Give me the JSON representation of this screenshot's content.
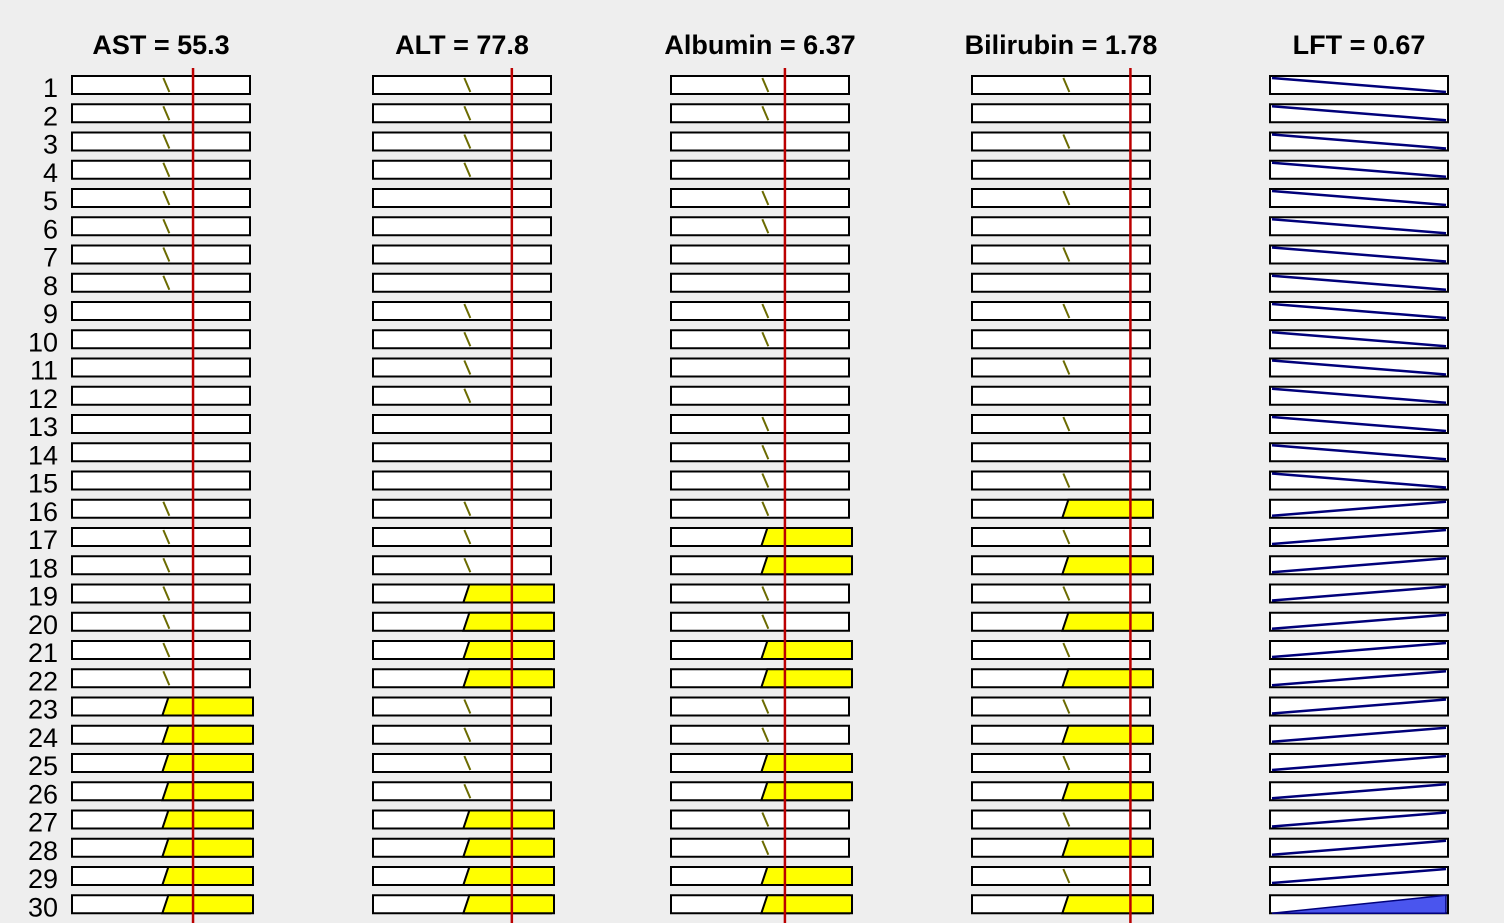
{
  "colors": {
    "background": "#eeeeee",
    "box_stroke": "#000000",
    "box_fill": "#ffffff",
    "fired_fill": "#ffff00",
    "threshold_line": "#bb0000",
    "membership_line": "#6b6b00",
    "output_line": "#00007a",
    "output_fill": "#4a55ee"
  },
  "rule_count": 30,
  "rule_numbers": [
    "1",
    "2",
    "3",
    "4",
    "5",
    "6",
    "7",
    "8",
    "9",
    "10",
    "11",
    "12",
    "13",
    "14",
    "15",
    "16",
    "17",
    "18",
    "19",
    "20",
    "21",
    "22",
    "23",
    "24",
    "25",
    "26",
    "27",
    "28",
    "29",
    "30"
  ],
  "columns": [
    {
      "title": "AST = 55.3",
      "threshold": 0.68,
      "rules": [
        "d",
        "d",
        "d",
        "d",
        "d",
        "d",
        "d",
        "d",
        "e",
        "e",
        "e",
        "e",
        "e",
        "e",
        "e",
        "d",
        "d",
        "d",
        "d",
        "d",
        "d",
        "d",
        "u",
        "u",
        "u",
        "u",
        "u",
        "u",
        "u",
        "u"
      ]
    },
    {
      "title": "ALT = 77.8",
      "threshold": 0.78,
      "rules": [
        "d",
        "d",
        "d",
        "d",
        "e",
        "e",
        "e",
        "e",
        "d",
        "d",
        "d",
        "d",
        "e",
        "e",
        "e",
        "d",
        "d",
        "d",
        "u",
        "u",
        "u",
        "u",
        "d",
        "d",
        "d",
        "d",
        "u",
        "u",
        "u",
        "u"
      ]
    },
    {
      "title": "Albumin = 6.37",
      "threshold": 0.64,
      "rules": [
        "d",
        "d",
        "e",
        "e",
        "d",
        "d",
        "e",
        "e",
        "d",
        "d",
        "e",
        "e",
        "d",
        "d",
        "d",
        "d",
        "u",
        "u",
        "d",
        "d",
        "u",
        "u",
        "d",
        "d",
        "u",
        "u",
        "d",
        "d",
        "u",
        "u"
      ]
    },
    {
      "title": "Bilirubin = 1.78",
      "threshold": 0.89,
      "rules": [
        "d",
        "e",
        "d",
        "e",
        "d",
        "e",
        "d",
        "e",
        "d",
        "e",
        "d",
        "e",
        "d",
        "e",
        "d",
        "u",
        "d",
        "u",
        "d",
        "u",
        "d",
        "u",
        "d",
        "u",
        "d",
        "u",
        "d",
        "u",
        "d",
        "u"
      ]
    },
    {
      "title": "LFT = 0.67",
      "output": [
        "z",
        "z",
        "z",
        "z",
        "z",
        "z",
        "z",
        "z",
        "z",
        "z",
        "z",
        "z",
        "z",
        "z",
        "z",
        "s",
        "s",
        "s",
        "s",
        "s",
        "s",
        "s",
        "s",
        "s",
        "s",
        "s",
        "s",
        "s",
        "s",
        "f"
      ]
    }
  ]
}
